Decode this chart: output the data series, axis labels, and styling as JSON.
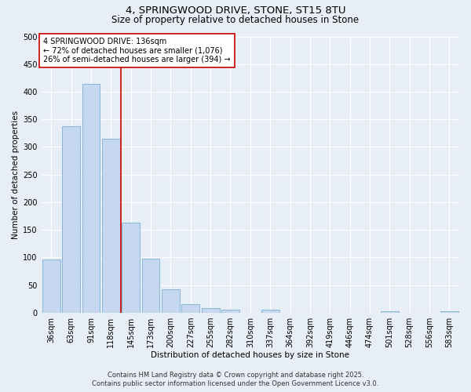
{
  "title_line1": "4, SPRINGWOOD DRIVE, STONE, ST15 8TU",
  "title_line2": "Size of property relative to detached houses in Stone",
  "xlabel": "Distribution of detached houses by size in Stone",
  "ylabel": "Number of detached properties",
  "categories": [
    "36sqm",
    "63sqm",
    "91sqm",
    "118sqm",
    "145sqm",
    "173sqm",
    "200sqm",
    "227sqm",
    "255sqm",
    "282sqm",
    "310sqm",
    "337sqm",
    "364sqm",
    "392sqm",
    "419sqm",
    "446sqm",
    "474sqm",
    "501sqm",
    "528sqm",
    "556sqm",
    "583sqm"
  ],
  "values": [
    97,
    338,
    414,
    315,
    163,
    98,
    43,
    15,
    8,
    5,
    0,
    5,
    0,
    0,
    0,
    0,
    0,
    3,
    0,
    0,
    3
  ],
  "bar_color": "#c5d8ef",
  "bar_edge_color": "#7bafd4",
  "red_line_x": 3.5,
  "annotation_text": "4 SPRINGWOOD DRIVE: 136sqm\n← 72% of detached houses are smaller (1,076)\n26% of semi-detached houses are larger (394) →",
  "annotation_box_color": "white",
  "annotation_box_edgecolor": "#cc0000",
  "ylim": [
    0,
    500
  ],
  "yticks": [
    0,
    50,
    100,
    150,
    200,
    250,
    300,
    350,
    400,
    450,
    500
  ],
  "footer_line1": "Contains HM Land Registry data © Crown copyright and database right 2025.",
  "footer_line2": "Contains public sector information licensed under the Open Government Licence v3.0.",
  "background_color": "#e8eef5",
  "plot_background_color": "#e8eef5",
  "grid_color": "white",
  "title_fontsize": 9.5,
  "subtitle_fontsize": 8.5,
  "axis_label_fontsize": 7.5,
  "tick_fontsize": 7,
  "annotation_fontsize": 7,
  "footer_fontsize": 6
}
